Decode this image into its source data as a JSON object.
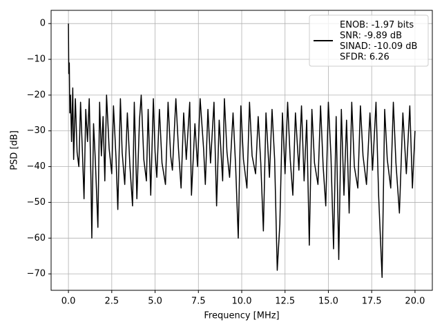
{
  "chart_data": {
    "type": "line",
    "xlabel": "Frequency [MHz]",
    "ylabel": "PSD [dB]",
    "x": [
      0,
      0.02,
      0.05,
      0.08,
      0.12,
      0.18,
      0.25,
      0.3,
      0.4,
      0.5,
      0.6,
      0.7,
      0.8,
      0.9,
      1.0,
      1.1,
      1.2,
      1.3,
      1.35,
      1.45,
      1.55,
      1.7,
      1.8,
      1.9,
      2.0,
      2.1,
      2.2,
      2.35,
      2.5,
      2.6,
      2.75,
      2.85,
      3.0,
      3.1,
      3.25,
      3.4,
      3.55,
      3.7,
      3.8,
      3.95,
      4.1,
      4.2,
      4.35,
      4.5,
      4.6,
      4.75,
      4.9,
      5.0,
      5.1,
      5.25,
      5.4,
      5.6,
      5.75,
      5.9,
      6.0,
      6.2,
      6.35,
      6.5,
      6.65,
      6.8,
      7.0,
      7.1,
      7.3,
      7.45,
      7.6,
      7.8,
      7.9,
      8.05,
      8.2,
      8.4,
      8.55,
      8.7,
      8.9,
      9.0,
      9.15,
      9.3,
      9.5,
      9.65,
      9.8,
      9.95,
      10.1,
      10.3,
      10.45,
      10.6,
      10.8,
      10.95,
      11.1,
      11.25,
      11.4,
      11.6,
      11.75,
      11.9,
      12.05,
      12.2,
      12.35,
      12.5,
      12.65,
      12.8,
      12.95,
      13.1,
      13.3,
      13.45,
      13.6,
      13.75,
      13.9,
      14.05,
      14.2,
      14.4,
      14.55,
      14.7,
      14.85,
      15.0,
      15.15,
      15.3,
      15.45,
      15.6,
      15.75,
      15.9,
      16.05,
      16.2,
      16.35,
      16.5,
      16.7,
      16.85,
      17.0,
      17.2,
      17.4,
      17.55,
      17.75,
      17.9,
      18.1,
      18.25,
      18.4,
      18.6,
      18.75,
      18.9,
      19.1,
      19.3,
      19.5,
      19.7,
      19.85,
      20.0
    ],
    "series": [
      {
        "name": "ENOB: -1.97 bits\nSNR: -9.89 dB\nSINAD: -10.09 dB\nSFDR: 6.26",
        "color": "#000000",
        "values": [
          0,
          -14,
          -11,
          -25,
          -20,
          -33,
          -18,
          -38,
          -21,
          -36,
          -40,
          -22,
          -35,
          -49,
          -24,
          -33,
          -21,
          -44,
          -60,
          -28,
          -38,
          -57,
          -22,
          -37,
          -26,
          -44,
          -20,
          -35,
          -42,
          -23,
          -38,
          -52,
          -21,
          -36,
          -45,
          -25,
          -40,
          -51,
          -22,
          -49,
          -27,
          -20,
          -38,
          -44,
          -24,
          -48,
          -21,
          -36,
          -43,
          -24,
          -39,
          -45,
          -22,
          -37,
          -41,
          -21,
          -35,
          -46,
          -25,
          -38,
          -22,
          -48,
          -28,
          -40,
          -21,
          -35,
          -45,
          -24,
          -39,
          -22,
          -51,
          -27,
          -44,
          -21,
          -36,
          -43,
          -25,
          -40,
          -60,
          -23,
          -38,
          -46,
          -22,
          -37,
          -42,
          -26,
          -39,
          -58,
          -25,
          -43,
          -24,
          -38,
          -69,
          -56,
          -25,
          -42,
          -22,
          -38,
          -48,
          -25,
          -41,
          -23,
          -44,
          -27,
          -62,
          -24,
          -39,
          -45,
          -23,
          -40,
          -51,
          -22,
          -37,
          -63,
          -26,
          -66,
          -24,
          -48,
          -27,
          -53,
          -22,
          -40,
          -46,
          -23,
          -37,
          -45,
          -25,
          -41,
          -22,
          -48,
          -71,
          -24,
          -38,
          -46,
          -22,
          -39,
          -53,
          -25,
          -42,
          -23,
          -46,
          -30
        ]
      }
    ],
    "xlim": [
      -1.0,
      21.0
    ],
    "ylim": [
      -74.6,
      3.7
    ],
    "xticks": [
      {
        "value": 0,
        "label": "0.0"
      },
      2.5,
      {
        "value": 5,
        "label": "5.0"
      },
      7.5,
      {
        "value": 10,
        "label": "10.0"
      },
      12.5,
      {
        "value": 15,
        "label": "15.0"
      },
      17.5,
      {
        "value": 20,
        "label": "20.0"
      }
    ],
    "yticks": [
      0,
      {
        "value": -10,
        "label": "−10"
      },
      {
        "value": -20,
        "label": "−20"
      },
      {
        "value": -30,
        "label": "−30"
      },
      {
        "value": -40,
        "label": "−40"
      },
      {
        "value": -50,
        "label": "−50"
      },
      {
        "value": -60,
        "label": "−60"
      },
      {
        "value": -70,
        "label": "−70"
      }
    ],
    "grid": true,
    "legend": "upper right"
  }
}
